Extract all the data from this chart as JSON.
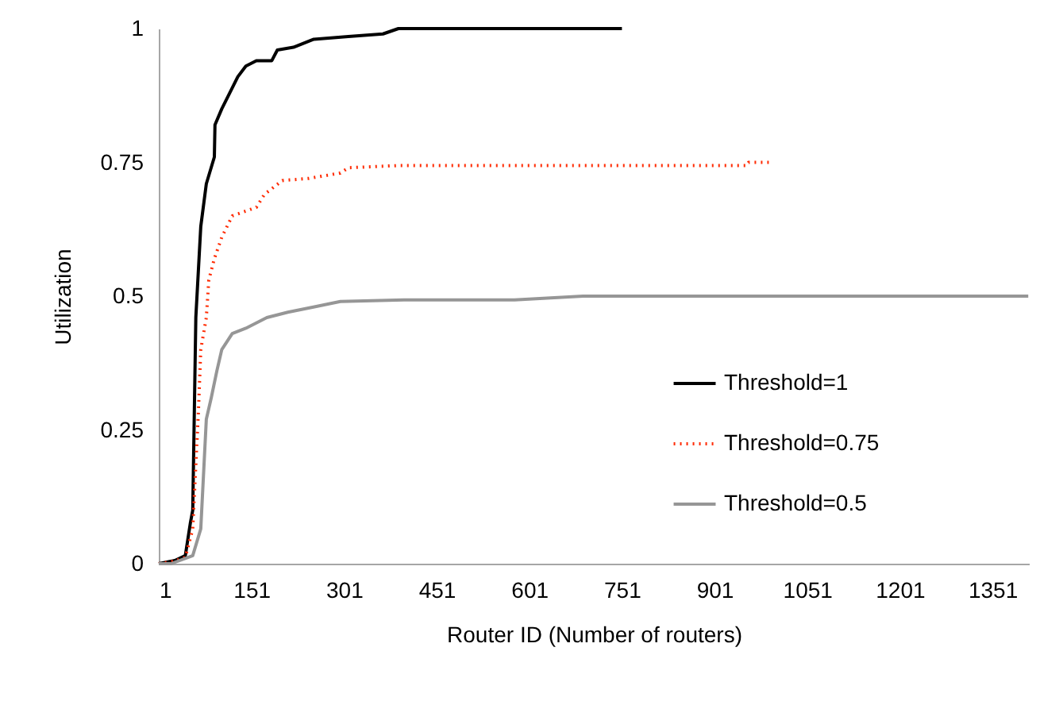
{
  "chart_data": {
    "type": "line",
    "xlabel": "Router ID (Number of routers)",
    "ylabel": "Utilization",
    "xlim": [
      1,
      1410
    ],
    "xticks": [
      1,
      151,
      301,
      451,
      601,
      751,
      901,
      1051,
      1201,
      1351
    ],
    "ylim": [
      0,
      1
    ],
    "yticks": [
      0,
      0.25,
      0.5,
      0.75,
      1
    ],
    "grid": false,
    "legend": "right",
    "marker": "none",
    "series": [
      {
        "name": "Threshold=1",
        "color": "#000000",
        "line_style": "solid",
        "x": [
          1,
          27,
          44,
          52,
          56,
          61,
          69,
          78,
          91,
          92,
          103,
          116,
          129,
          142,
          159,
          184,
          193,
          219,
          252,
          308,
          364,
          389,
          751
        ],
        "values": [
          0,
          0.006,
          0.015,
          0.075,
          0.1,
          0.46,
          0.63,
          0.71,
          0.76,
          0.82,
          0.85,
          0.88,
          0.91,
          0.93,
          0.94,
          0.94,
          0.96,
          0.965,
          0.98,
          0.985,
          0.99,
          1,
          1
        ]
      },
      {
        "name": "Threshold=0.75",
        "color": "#ff2a00",
        "line_style": "dotted",
        "x": [
          1,
          27,
          44,
          56,
          65,
          69,
          78,
          82,
          91,
          103,
          120,
          159,
          172,
          201,
          244,
          295,
          308,
          389,
          953,
          956,
          989
        ],
        "values": [
          0,
          0.005,
          0.012,
          0.065,
          0.28,
          0.4,
          0.46,
          0.53,
          0.57,
          0.61,
          0.65,
          0.666,
          0.69,
          0.716,
          0.72,
          0.73,
          0.74,
          0.744,
          0.744,
          0.75,
          0.75
        ]
      },
      {
        "name": "Threshold=0.5",
        "color": "#969696",
        "line_style": "solid",
        "x": [
          1,
          21,
          56,
          69,
          78,
          86,
          95,
          103,
          120,
          142,
          176,
          210,
          253,
          295,
          398,
          577,
          688,
          1409
        ],
        "values": [
          0,
          0,
          0.015,
          0.065,
          0.27,
          0.31,
          0.36,
          0.4,
          0.43,
          0.44,
          0.46,
          0.47,
          0.48,
          0.49,
          0.493,
          0.493,
          0.5,
          0.5
        ]
      }
    ]
  }
}
